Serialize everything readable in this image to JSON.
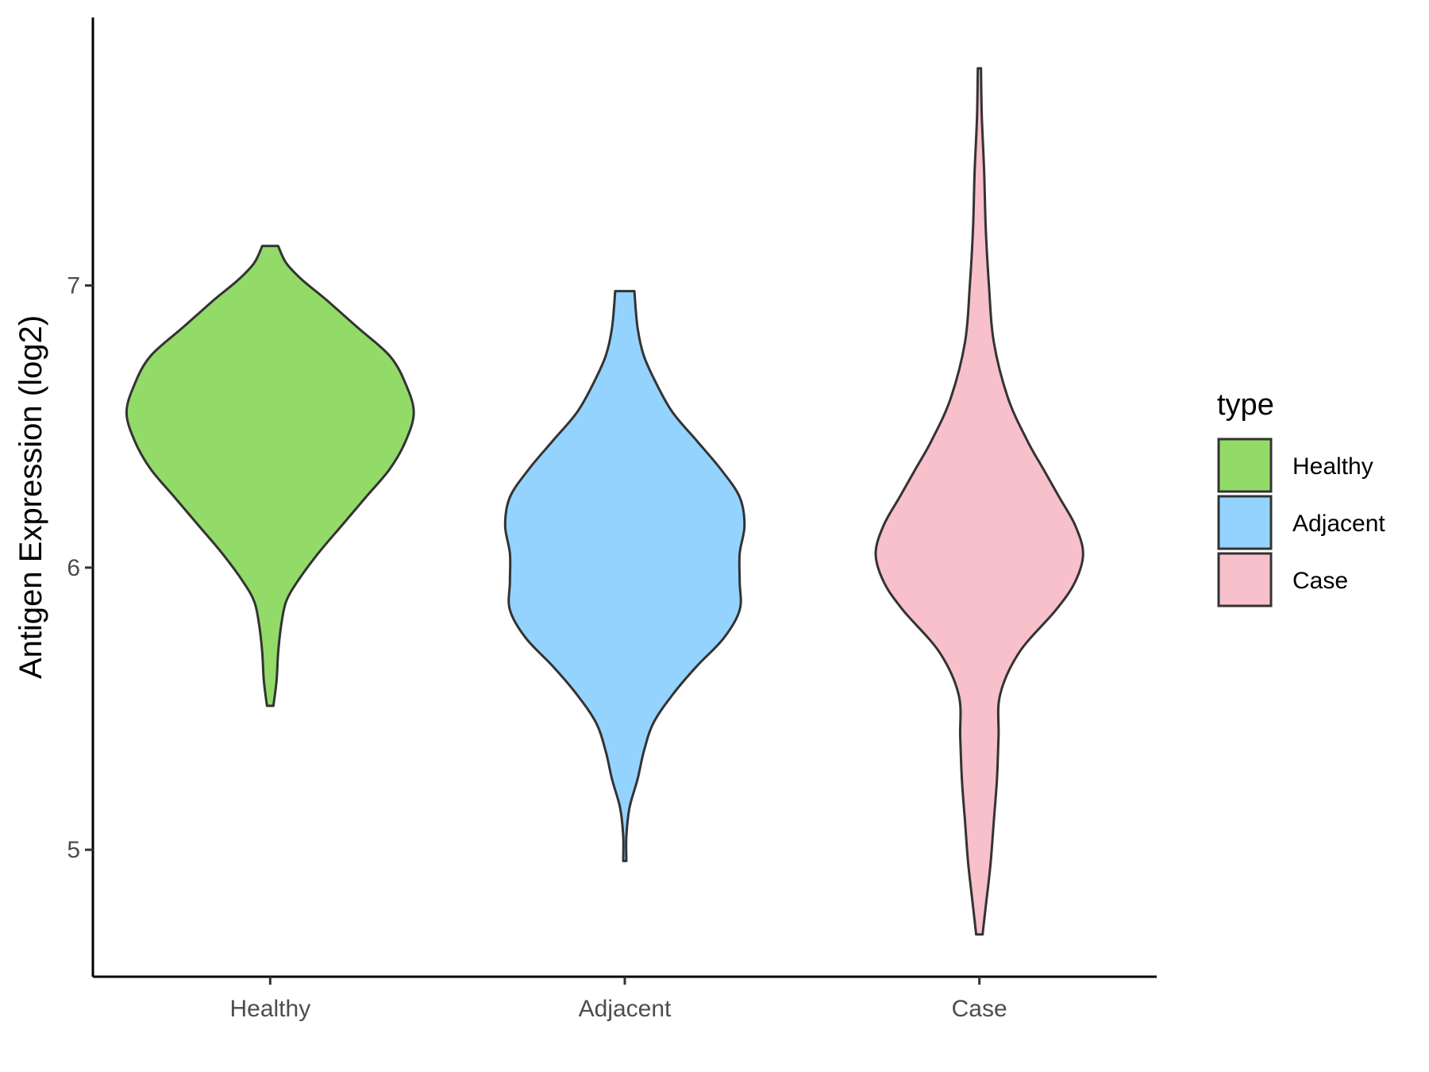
{
  "chart_data": {
    "type": "violin",
    "xlabel": "",
    "ylabel": "Antigen Expression (log2)",
    "ylim": [
      4.55,
      7.95
    ],
    "yticks": [
      "5",
      "6",
      "7"
    ],
    "categories": [
      "Healthy",
      "Adjacent",
      "Case"
    ],
    "grid": false,
    "legend": {
      "title": "type",
      "position": "right",
      "entries": [
        "Healthy",
        "Adjacent",
        "Case"
      ]
    },
    "series": [
      {
        "category": "Healthy",
        "color": "#93DB69",
        "min": 5.51,
        "max": 7.14,
        "density": [
          [
            5.51,
            0.02
          ],
          [
            5.6,
            0.04
          ],
          [
            5.7,
            0.05
          ],
          [
            5.8,
            0.07
          ],
          [
            5.88,
            0.1
          ],
          [
            5.95,
            0.17
          ],
          [
            6.05,
            0.3
          ],
          [
            6.15,
            0.45
          ],
          [
            6.25,
            0.6
          ],
          [
            6.35,
            0.75
          ],
          [
            6.45,
            0.85
          ],
          [
            6.55,
            0.9
          ],
          [
            6.65,
            0.85
          ],
          [
            6.75,
            0.75
          ],
          [
            6.85,
            0.55
          ],
          [
            6.95,
            0.35
          ],
          [
            7.02,
            0.2
          ],
          [
            7.08,
            0.1
          ],
          [
            7.14,
            0.05
          ]
        ]
      },
      {
        "category": "Adjacent",
        "color": "#94D3FE",
        "min": 4.96,
        "max": 6.98,
        "density": [
          [
            4.96,
            0.01
          ],
          [
            5.05,
            0.01
          ],
          [
            5.15,
            0.03
          ],
          [
            5.25,
            0.08
          ],
          [
            5.35,
            0.12
          ],
          [
            5.45,
            0.18
          ],
          [
            5.55,
            0.3
          ],
          [
            5.65,
            0.45
          ],
          [
            5.75,
            0.62
          ],
          [
            5.85,
            0.72
          ],
          [
            5.95,
            0.72
          ],
          [
            6.05,
            0.72
          ],
          [
            6.15,
            0.75
          ],
          [
            6.25,
            0.72
          ],
          [
            6.35,
            0.6
          ],
          [
            6.45,
            0.45
          ],
          [
            6.55,
            0.3
          ],
          [
            6.65,
            0.2
          ],
          [
            6.75,
            0.12
          ],
          [
            6.85,
            0.08
          ],
          [
            6.98,
            0.06
          ]
        ]
      },
      {
        "category": "Case",
        "color": "#F8C0CB",
        "min": 4.7,
        "max": 7.77,
        "density": [
          [
            4.7,
            0.02
          ],
          [
            4.8,
            0.04
          ],
          [
            4.95,
            0.07
          ],
          [
            5.1,
            0.09
          ],
          [
            5.25,
            0.11
          ],
          [
            5.4,
            0.12
          ],
          [
            5.55,
            0.13
          ],
          [
            5.7,
            0.25
          ],
          [
            5.85,
            0.48
          ],
          [
            5.95,
            0.6
          ],
          [
            6.05,
            0.65
          ],
          [
            6.15,
            0.6
          ],
          [
            6.25,
            0.5
          ],
          [
            6.35,
            0.4
          ],
          [
            6.45,
            0.3
          ],
          [
            6.6,
            0.18
          ],
          [
            6.8,
            0.09
          ],
          [
            7.0,
            0.06
          ],
          [
            7.2,
            0.04
          ],
          [
            7.4,
            0.03
          ],
          [
            7.6,
            0.015
          ],
          [
            7.77,
            0.01
          ]
        ]
      }
    ]
  }
}
